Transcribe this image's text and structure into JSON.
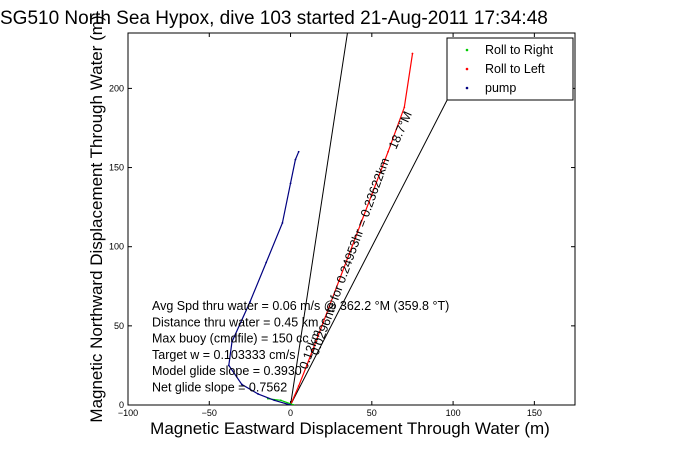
{
  "chart_data": {
    "type": "line",
    "title": "SG510 North Sea Hypox, dive 103 started 21-Aug-2011 17:34:48",
    "xlabel": "Magnetic Eastward Displacement Through Water (m)",
    "ylabel": "Magnetic Northward Displacement Through Water (m)",
    "xlim": [
      -100,
      175
    ],
    "ylim": [
      0,
      235
    ],
    "xticks": [
      -100,
      -50,
      0,
      50,
      100,
      150
    ],
    "yticks": [
      0,
      50,
      100,
      150,
      200
    ],
    "grid": false,
    "legend_position": "top-right",
    "legend": [
      "Roll to Right",
      "Roll to Left",
      "pump"
    ],
    "series": [
      {
        "name": "Roll to Left",
        "color": "#ff0000",
        "x": [
          0,
          5,
          10,
          20,
          30,
          40,
          50,
          60,
          70,
          75
        ],
        "y": [
          0,
          12,
          25,
          52,
          79,
          106,
          133,
          160,
          188,
          222
        ]
      },
      {
        "name": "Roll to Right",
        "color": "#00cc00",
        "x": [
          -14,
          -6,
          2
        ],
        "y": [
          4,
          3,
          0
        ]
      },
      {
        "name": "pump",
        "color": "#000080",
        "x": [
          0,
          -10,
          -20,
          -30,
          -38,
          -36,
          -25,
          -15,
          -5,
          0,
          3,
          5
        ],
        "y": [
          0,
          3,
          7,
          13,
          25,
          40,
          65,
          90,
          115,
          140,
          155,
          160
        ]
      }
    ],
    "reference_lines": [
      {
        "color": "#000000",
        "x": [
          0,
          35
        ],
        "y": [
          0,
          235
        ]
      },
      {
        "color": "#000000",
        "x": [
          0,
          100
        ],
        "y": [
          0,
          200
        ]
      }
    ],
    "annotations": [
      "Avg Spd thru water = 0.06 m/s @ 362.2   °M (359.8 °T)",
      "Distance thru water = 0.45 km",
      "Max buoy (cmdfile) = 150 cc",
      "Target w = 0.103333 cm/s",
      "Model glide slope = 0.3930",
      "Net glide slope = 0.7562"
    ],
    "line_labels": [
      "0.0296nts for 0.24953hr = 0.23622km",
      "18.7°M",
      "0.12km"
    ]
  }
}
